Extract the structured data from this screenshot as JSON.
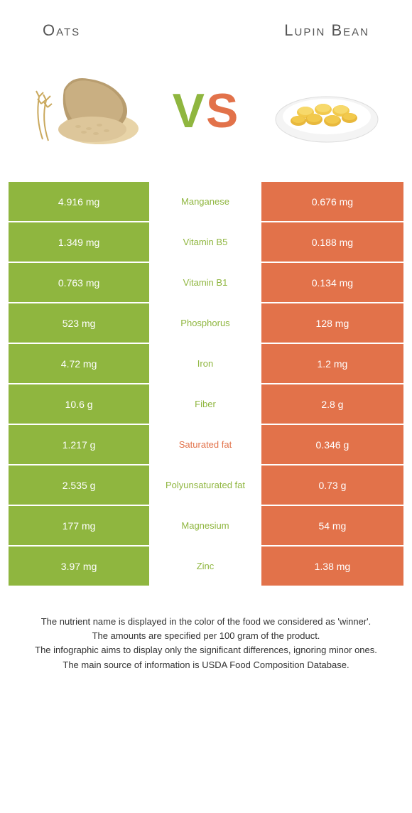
{
  "header": {
    "title_left": "Oats",
    "title_right": "Lupin Bean",
    "vs_v": "V",
    "vs_s": "S"
  },
  "colors": {
    "left": "#8fb63f",
    "right": "#e2724a",
    "mid_text_left": "#8fb63f",
    "mid_text_right": "#e2724a"
  },
  "rows": [
    {
      "left": "4.916 mg",
      "mid": "Manganese",
      "right": "0.676 mg",
      "mid_color": "left"
    },
    {
      "left": "1.349 mg",
      "mid": "Vitamin B5",
      "right": "0.188 mg",
      "mid_color": "left"
    },
    {
      "left": "0.763 mg",
      "mid": "Vitamin B1",
      "right": "0.134 mg",
      "mid_color": "left"
    },
    {
      "left": "523 mg",
      "mid": "Phosphorus",
      "right": "128 mg",
      "mid_color": "left"
    },
    {
      "left": "4.72 mg",
      "mid": "Iron",
      "right": "1.2 mg",
      "mid_color": "left"
    },
    {
      "left": "10.6 g",
      "mid": "Fiber",
      "right": "2.8 g",
      "mid_color": "left"
    },
    {
      "left": "1.217 g",
      "mid": "Saturated fat",
      "right": "0.346 g",
      "mid_color": "right"
    },
    {
      "left": "2.535 g",
      "mid": "Polyunsaturated fat",
      "right": "0.73 g",
      "mid_color": "left"
    },
    {
      "left": "177 mg",
      "mid": "Magnesium",
      "right": "54 mg",
      "mid_color": "left"
    },
    {
      "left": "3.97 mg",
      "mid": "Zinc",
      "right": "1.38 mg",
      "mid_color": "left"
    }
  ],
  "footnote": {
    "l1": "The nutrient name is displayed in the color of the food we considered as 'winner'.",
    "l2": "The amounts are specified per 100 gram of the product.",
    "l3": "The infographic aims to display only the significant differences, ignoring minor ones.",
    "l4": "The main source of information is USDA Food Composition Database."
  }
}
